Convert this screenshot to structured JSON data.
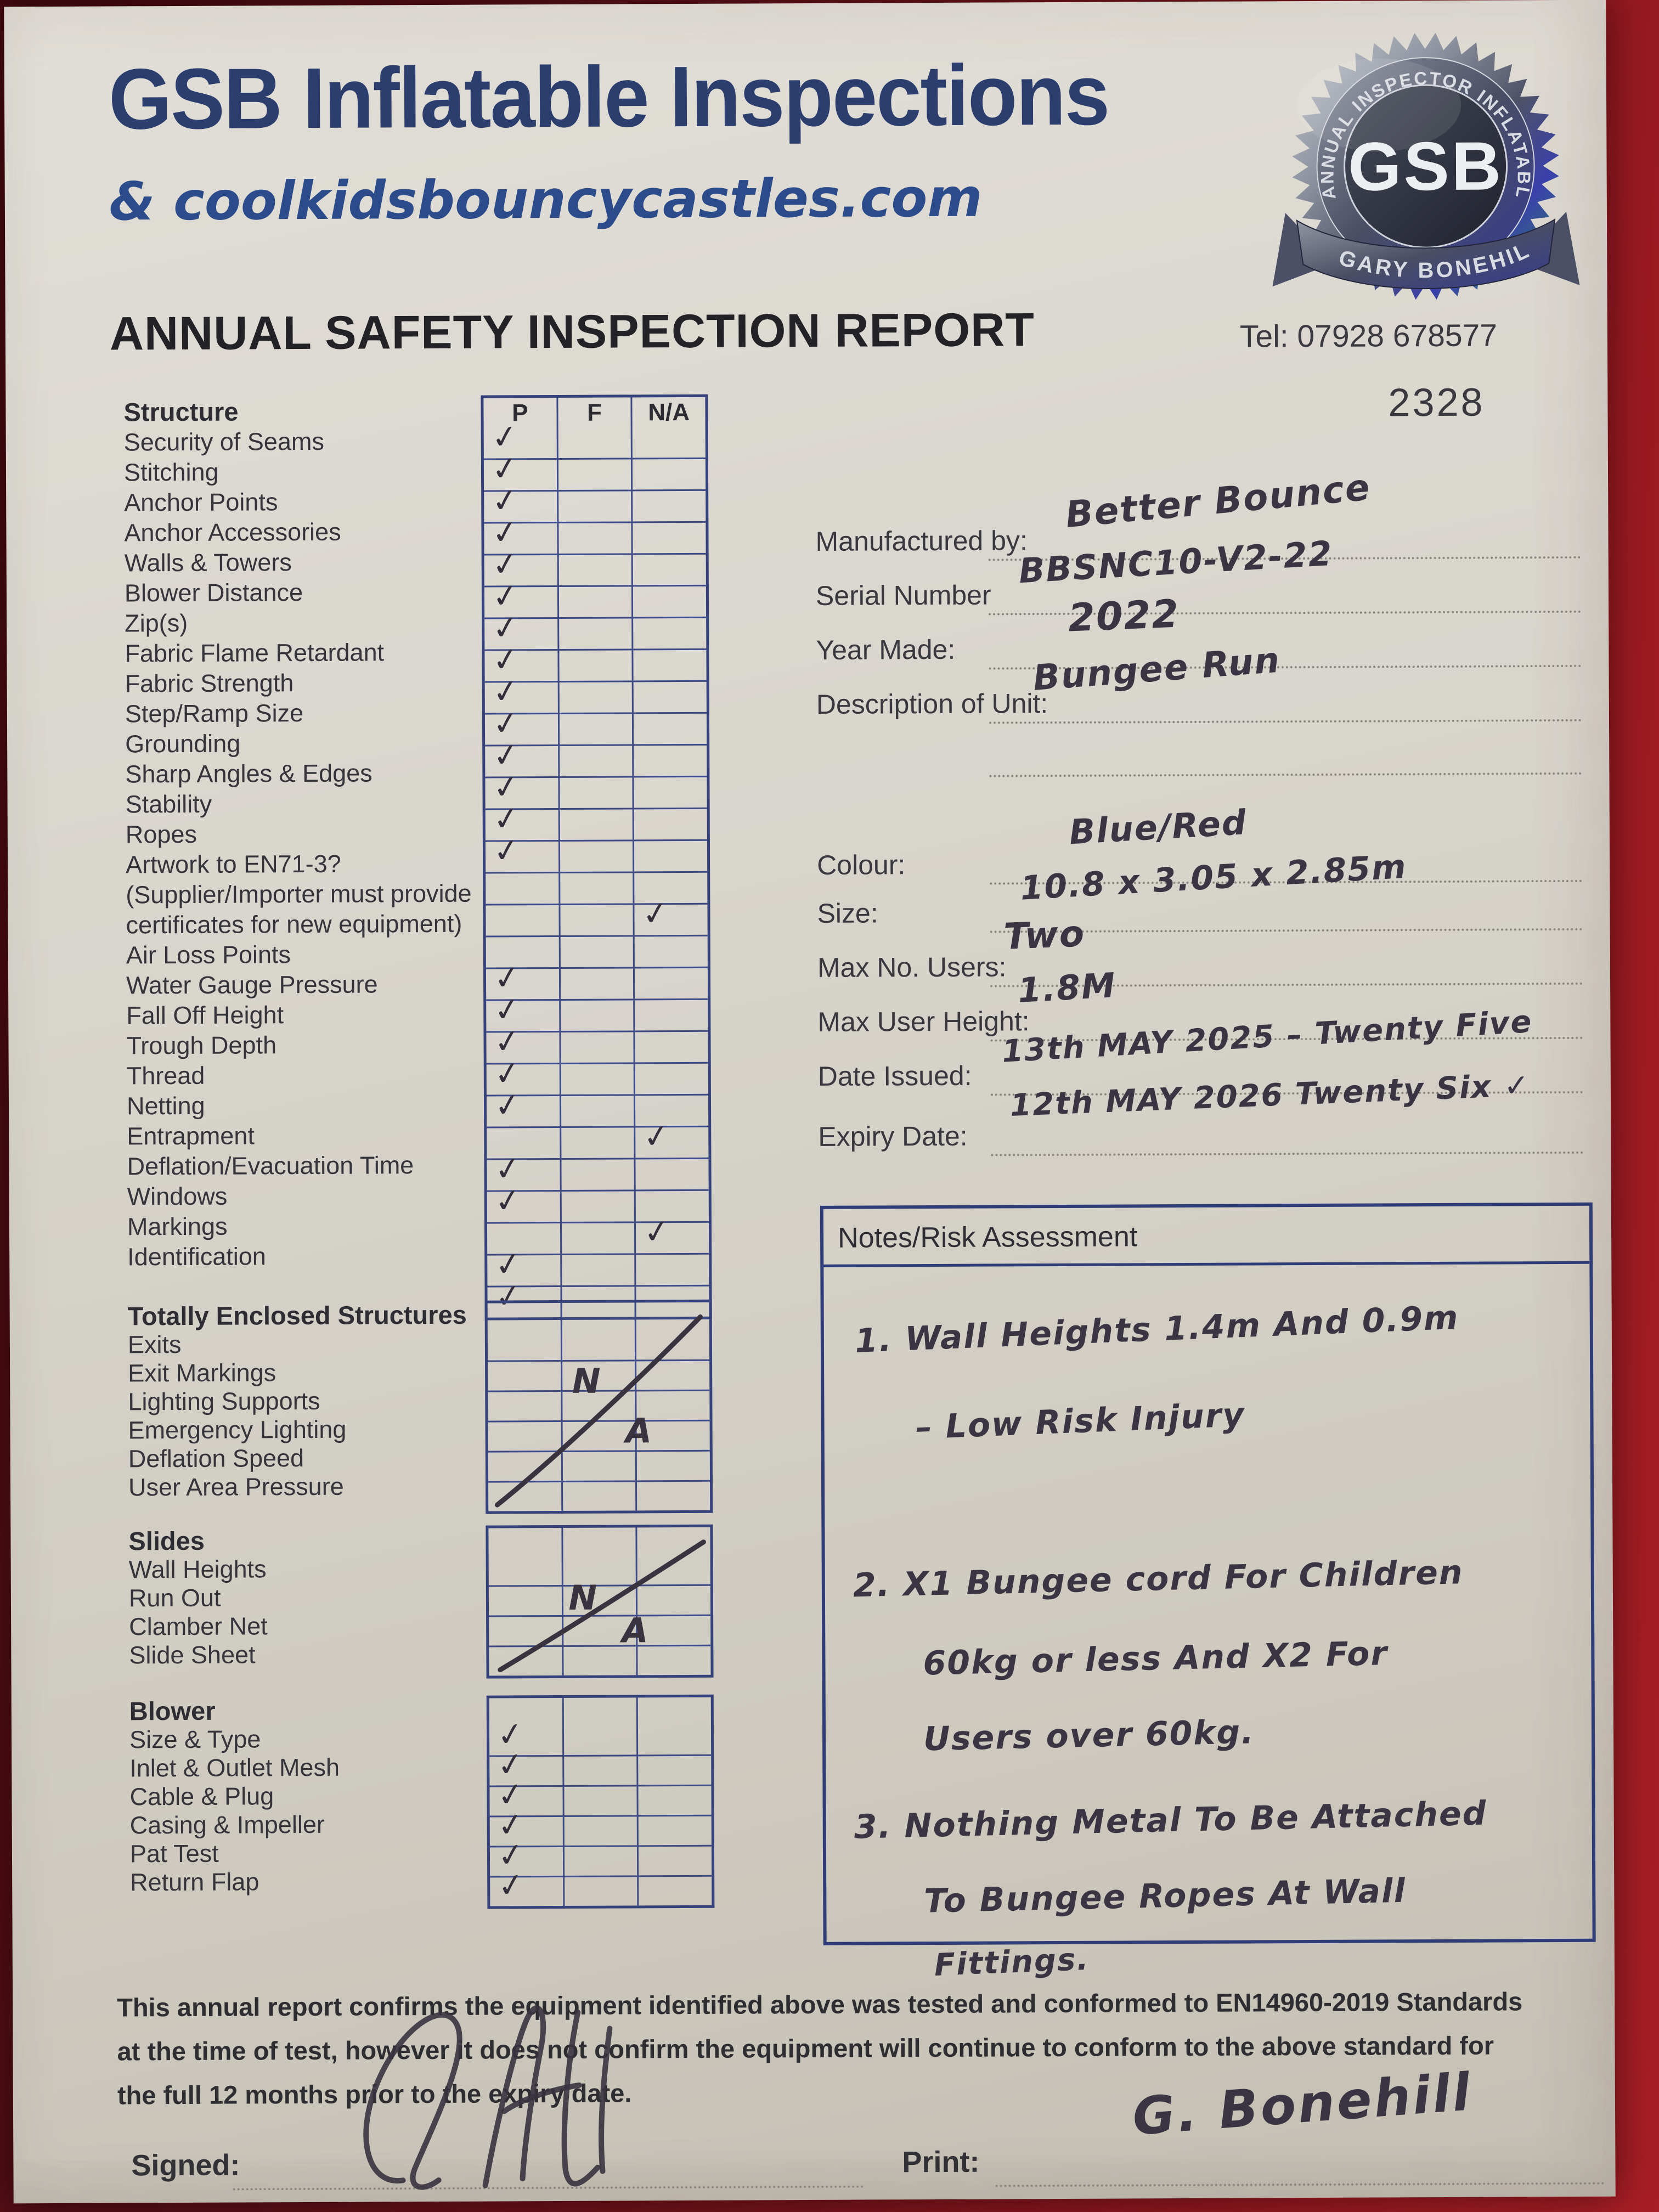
{
  "header": {
    "title": "GSB Inflatable Inspections",
    "subtitle": "& coolkidsbouncycastles.com",
    "report_title": "ANNUAL SAFETY INSPECTION REPORT",
    "tel": "Tel: 07928 678577",
    "report_number": "2328"
  },
  "seal": {
    "arc_text": "ANNUAL INSPECTOR INFLATABLE",
    "center_text": "GSB",
    "ribbon_text": "GARY BONEHILL"
  },
  "checklist": {
    "columns": [
      "P",
      "F",
      "N/A"
    ],
    "structure": {
      "heading": "Structure",
      "rows": [
        {
          "label": "Security of Seams",
          "p": "✓",
          "f": "",
          "na": ""
        },
        {
          "label": "Stitching",
          "p": "✓",
          "f": "",
          "na": ""
        },
        {
          "label": "Anchor Points",
          "p": "✓",
          "f": "",
          "na": ""
        },
        {
          "label": "Anchor Accessories",
          "p": "✓",
          "f": "",
          "na": ""
        },
        {
          "label": "Walls & Towers",
          "p": "✓",
          "f": "",
          "na": ""
        },
        {
          "label": "Blower Distance",
          "p": "✓",
          "f": "",
          "na": ""
        },
        {
          "label": "Zip(s)",
          "p": "✓",
          "f": "",
          "na": ""
        },
        {
          "label": "Fabric Flame Retardant",
          "p": "✓",
          "f": "",
          "na": ""
        },
        {
          "label": "Fabric Strength",
          "p": "✓",
          "f": "",
          "na": ""
        },
        {
          "label": "Step/Ramp Size",
          "p": "✓",
          "f": "",
          "na": ""
        },
        {
          "label": "Grounding",
          "p": "✓",
          "f": "",
          "na": ""
        },
        {
          "label": "Sharp Angles & Edges",
          "p": "✓",
          "f": "",
          "na": ""
        },
        {
          "label": "Stability",
          "p": "✓",
          "f": "",
          "na": ""
        },
        {
          "label": "Ropes",
          "p": "✓",
          "f": "",
          "na": ""
        },
        {
          "label": "Artwork to EN71-3?",
          "p": "",
          "f": "",
          "na": ""
        },
        {
          "label": "(Supplier/Importer must provide",
          "p": "",
          "f": "",
          "na": "✓"
        },
        {
          "label": "certificates for new equipment)",
          "p": "",
          "f": "",
          "na": ""
        },
        {
          "label": "Air Loss Points",
          "p": "✓",
          "f": "",
          "na": ""
        },
        {
          "label": "Water Gauge Pressure",
          "p": "✓",
          "f": "",
          "na": ""
        },
        {
          "label": "Fall Off Height",
          "p": "✓",
          "f": "",
          "na": ""
        },
        {
          "label": "Trough Depth",
          "p": "✓",
          "f": "",
          "na": ""
        },
        {
          "label": "Thread",
          "p": "✓",
          "f": "",
          "na": ""
        },
        {
          "label": "Netting",
          "p": "",
          "f": "",
          "na": "✓"
        },
        {
          "label": "Entrapment",
          "p": "✓",
          "f": "",
          "na": ""
        },
        {
          "label": "Deflation/Evacuation Time",
          "p": "✓",
          "f": "",
          "na": ""
        },
        {
          "label": "Windows",
          "p": "",
          "f": "",
          "na": "✓"
        },
        {
          "label": "Markings",
          "p": "✓",
          "f": "",
          "na": ""
        },
        {
          "label": "Identification",
          "p": "✓",
          "f": "",
          "na": ""
        }
      ]
    },
    "enclosed": {
      "heading": "Totally Enclosed Structures",
      "items": [
        "Exits",
        "Exit Markings",
        "Lighting Supports",
        "Emergency Lighting",
        "Deflation Speed",
        "User Area Pressure"
      ],
      "na_mark": {
        "n": "N",
        "a": "A"
      }
    },
    "slides": {
      "heading": "Slides",
      "items": [
        "Wall Heights",
        "Run Out",
        "Clamber Net",
        "Slide Sheet"
      ],
      "na_mark": {
        "n": "N",
        "a": "A"
      }
    },
    "blower": {
      "heading": "Blower",
      "rows": [
        {
          "label": "Size & Type",
          "p": "✓",
          "f": "",
          "na": ""
        },
        {
          "label": "Inlet & Outlet Mesh",
          "p": "✓",
          "f": "",
          "na": ""
        },
        {
          "label": "Cable & Plug",
          "p": "✓",
          "f": "",
          "na": ""
        },
        {
          "label": "Casing & Impeller",
          "p": "✓",
          "f": "",
          "na": ""
        },
        {
          "label": "Pat Test",
          "p": "✓",
          "f": "",
          "na": ""
        },
        {
          "label": "Return Flap",
          "p": "✓",
          "f": "",
          "na": ""
        }
      ]
    }
  },
  "details": {
    "fields": [
      {
        "label": "Manufactured by:",
        "value": "Better Bounce"
      },
      {
        "label": "Serial Number",
        "value": "BBSNC10-V2-22"
      },
      {
        "label": "Year Made:",
        "value": "2022"
      },
      {
        "label": "Description of Unit:",
        "value": "Bungee Run"
      },
      {
        "label": "",
        "value": ""
      },
      {
        "label": "Colour:",
        "value": "Blue/Red"
      },
      {
        "label": "Size:",
        "value": "10.8 x 3.05 x 2.85m"
      },
      {
        "label": "Max No. Users:",
        "value": "Two"
      },
      {
        "label": "Max User Height:",
        "value": "1.8M"
      },
      {
        "label": "Date Issued:",
        "value": "13th MAY 2025 – Twenty Five"
      },
      {
        "label": "Expiry Date:",
        "value": "12th MAY 2026 Twenty Six ✓"
      }
    ]
  },
  "notes": {
    "heading": "Notes/Risk Assessment",
    "lines": [
      "1.   Wall Heights 1.4m And 0.9m",
      "–  Low Risk Injury",
      "2.   X1 Bungee cord For Children",
      "60kg or less And X2 For",
      "Users over 60kg.",
      "3.   Nothing Metal To Be Attached",
      "To Bungee Ropes At Wall",
      "Fittings."
    ]
  },
  "footer": {
    "disclaimer_lines": [
      "This annual report confirms the equipment identified above was tested and conformed to EN14960-2019 Standards",
      "at the time of test, however it does not confirm the equipment will continue to conform to the above standard for",
      "the full 12 months prior to the expiry date."
    ],
    "signed_label": "Signed:",
    "print_label": "Print:",
    "print_value": "G. Bonehill"
  }
}
